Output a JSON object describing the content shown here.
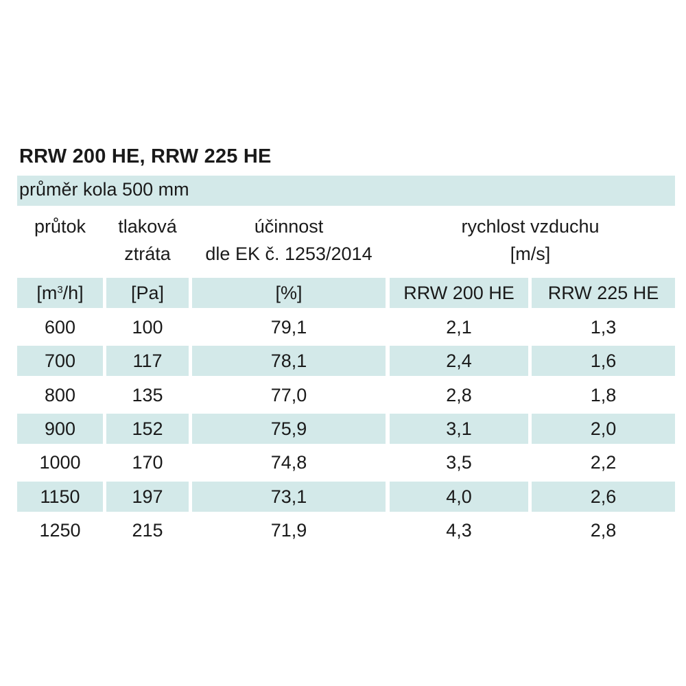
{
  "title": "RRW 200 HE, RRW 225 HE",
  "subtitle": "průměr kola 500 mm",
  "headers": {
    "flow": [
      "průtok"
    ],
    "pressure": [
      "tlaková",
      "ztráta"
    ],
    "efficiency": [
      "účinnost",
      "dle EK č. 1253/2014"
    ],
    "speed": [
      "rychlost vzduchu",
      "[m/s]"
    ]
  },
  "units": {
    "flow_prefix": "[m",
    "flow_sup": "3",
    "flow_suffix": "/h]",
    "pressure": "[Pa]",
    "efficiency": "[%]",
    "speed_a": "RRW 200 HE",
    "speed_b": "RRW 225 HE"
  },
  "rows": [
    [
      "600",
      "100",
      "79,1",
      "2,1",
      "1,3"
    ],
    [
      "700",
      "117",
      "78,1",
      "2,4",
      "1,6"
    ],
    [
      "800",
      "135",
      "77,0",
      "2,8",
      "1,8"
    ],
    [
      "900",
      "152",
      "75,9",
      "3,1",
      "2,0"
    ],
    [
      "1000",
      "170",
      "74,8",
      "3,5",
      "2,2"
    ],
    [
      "1150",
      "197",
      "73,1",
      "4,0",
      "2,6"
    ],
    [
      "1250",
      "215",
      "71,9",
      "4,3",
      "2,8"
    ]
  ],
  "colors": {
    "band": "#d3e9e9",
    "text": "#1a1a1a"
  }
}
